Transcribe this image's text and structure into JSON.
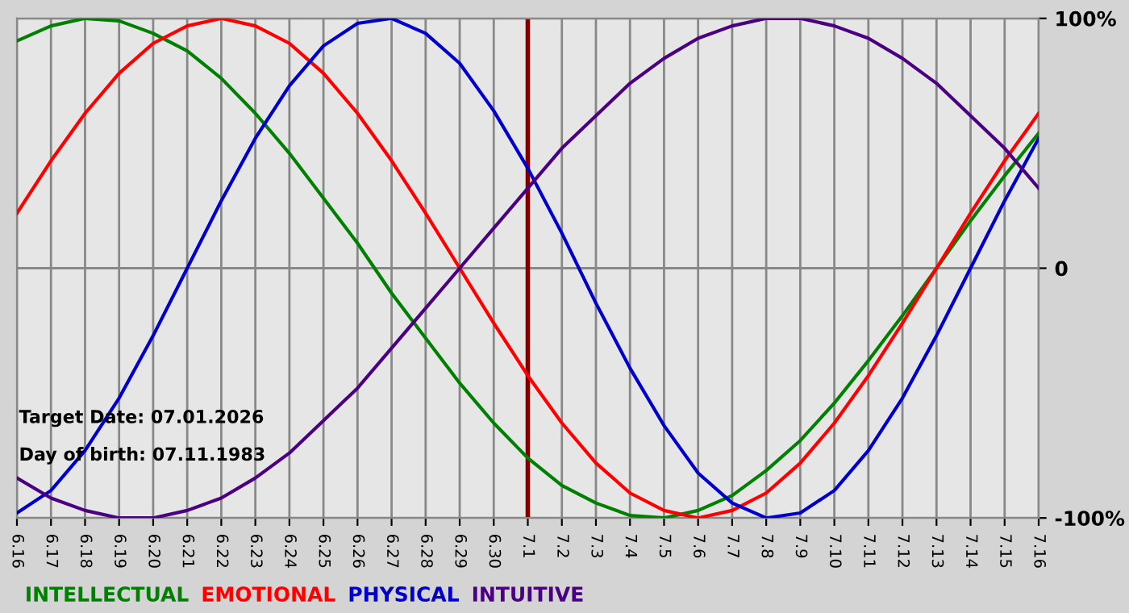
{
  "chart_data": {
    "type": "line",
    "categories": [
      "6.16",
      "6.17",
      "6.18",
      "6.19",
      "6.20",
      "6.21",
      "6.22",
      "6.23",
      "6.24",
      "6.25",
      "6.26",
      "6.27",
      "6.28",
      "6.29",
      "6.30",
      "7.1",
      "7.2",
      "7.3",
      "7.4",
      "7.5",
      "7.6",
      "7.7",
      "7.8",
      "7.9",
      "7.10",
      "7.11",
      "7.12",
      "7.13",
      "7.14",
      "7.15",
      "7.16"
    ],
    "series": [
      {
        "name": "INTELLECTUAL",
        "color": "#008000",
        "values": [
          91,
          97,
          100,
          99,
          94,
          87,
          76,
          62,
          46,
          28,
          10,
          -10,
          -28,
          -46,
          -62,
          -76,
          -87,
          -94,
          -99,
          -100,
          -97,
          -91,
          -81,
          -69,
          -54,
          -37,
          -19,
          0,
          19,
          37,
          54
        ]
      },
      {
        "name": "EMOTIONAL",
        "color": "#ff0000",
        "values": [
          22,
          43,
          62,
          78,
          90,
          97,
          100,
          97,
          90,
          78,
          62,
          43,
          22,
          0,
          -22,
          -43,
          -62,
          -78,
          -90,
          -97,
          -100,
          -97,
          -90,
          -78,
          -62,
          -43,
          -22,
          0,
          22,
          43,
          62
        ]
      },
      {
        "name": "PHYSICAL",
        "color": "#0000cc",
        "values": [
          -98,
          -89,
          -73,
          -52,
          -27,
          0,
          27,
          52,
          73,
          89,
          98,
          100,
          94,
          82,
          63,
          40,
          14,
          -14,
          -40,
          -63,
          -82,
          -94,
          -100,
          -98,
          -89,
          -73,
          -52,
          -27,
          0,
          27,
          52
        ]
      },
      {
        "name": "INTUITIVE",
        "color": "#4b0082",
        "values": [
          -84,
          -92,
          -97,
          -100,
          -100,
          -97,
          -92,
          -84,
          -74,
          -61,
          -48,
          -32,
          -16,
          0,
          16,
          32,
          48,
          61,
          74,
          84,
          92,
          97,
          100,
          100,
          97,
          92,
          84,
          74,
          61,
          48,
          32
        ]
      }
    ],
    "ylim": [
      -100,
      100
    ],
    "yticks": [
      {
        "value": -100,
        "label": "-100%"
      },
      0,
      {
        "value": 100,
        "label": "100%"
      }
    ],
    "ref_lines": [
      {
        "axis": "x",
        "value": "7.1",
        "label": null,
        "color": "#800000"
      }
    ],
    "annotations": [
      "Target Date: 07.01.2026",
      "Day of birth: 07.11.1983"
    ],
    "grid": true,
    "legend": "bottom left",
    "marker": "none",
    "line_style": "solid"
  }
}
